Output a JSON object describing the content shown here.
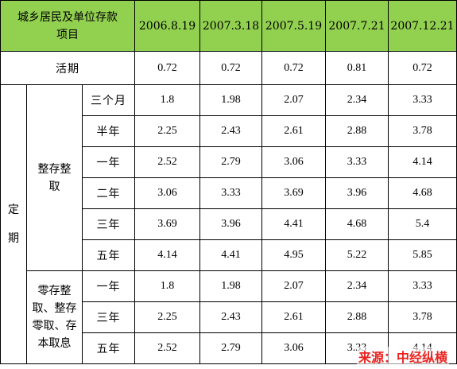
{
  "header": {
    "title_line1": "城乡居民及单位存款",
    "title_line2": "项目",
    "dates": [
      "2006.8.19",
      "2007.3.18",
      "2007.5.19",
      "2007.7.21",
      "2007.12.21"
    ]
  },
  "current": {
    "label": "活期",
    "values": [
      "0.72",
      "0.72",
      "0.72",
      "0.81",
      "0.72"
    ]
  },
  "fixed": {
    "label_line1": "定",
    "label_line2": "期",
    "group1": {
      "label_line1": "整存整",
      "label_line2": "取",
      "rows": [
        {
          "term": "三个月",
          "values": [
            "1.8",
            "1.98",
            "2.07",
            "2.34",
            "3.33"
          ]
        },
        {
          "term": "半年",
          "values": [
            "2.25",
            "2.43",
            "2.61",
            "2.88",
            "3.78"
          ]
        },
        {
          "term": "一年",
          "values": [
            "2.52",
            "2.79",
            "3.06",
            "3.33",
            "4.14"
          ]
        },
        {
          "term": "二年",
          "values": [
            "3.06",
            "3.33",
            "3.69",
            "3.96",
            "4.68"
          ]
        },
        {
          "term": "三年",
          "values": [
            "3.69",
            "3.96",
            "4.41",
            "4.68",
            "5.4"
          ]
        },
        {
          "term": "五年",
          "values": [
            "4.14",
            "4.41",
            "4.95",
            "5.22",
            "5.85"
          ]
        }
      ]
    },
    "group2": {
      "label_lines": [
        "零存整",
        "取、整存",
        "零取、存",
        "本取息"
      ],
      "rows": [
        {
          "term": "一年",
          "values": [
            "1.8",
            "1.98",
            "2.07",
            "2.34",
            "3.33"
          ]
        },
        {
          "term": "三年",
          "values": [
            "2.25",
            "2.43",
            "2.61",
            "2.88",
            "3.78"
          ]
        },
        {
          "term": "五年",
          "values": [
            "2.52",
            "2.79",
            "3.06",
            "3.33",
            "4.14"
          ]
        }
      ]
    }
  },
  "source": "来源：中经纵横",
  "colors": {
    "header_bg": "#92d050",
    "source_text": "#e8231f"
  }
}
